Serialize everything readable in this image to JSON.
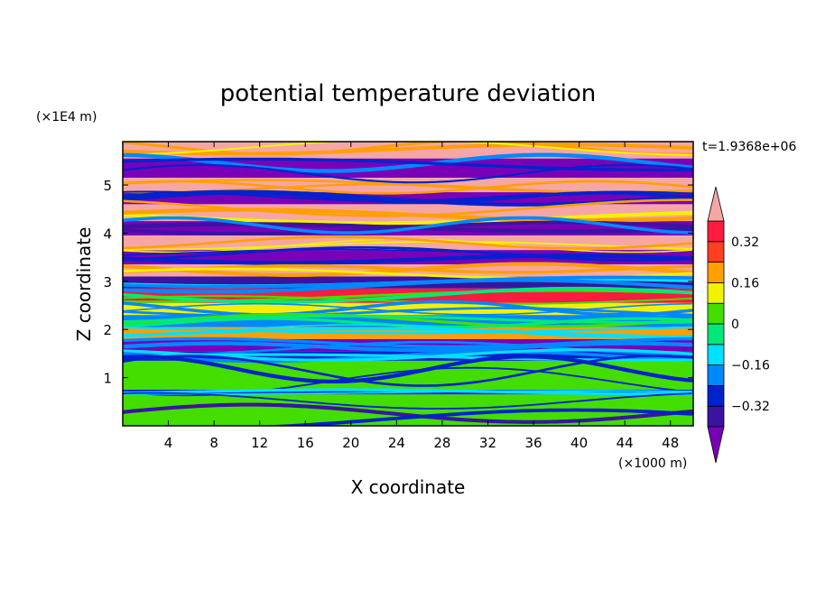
{
  "chart_data": {
    "type": "heatmap",
    "title": "potential temperature deviation",
    "xlabel": "X coordinate",
    "ylabel": "Z coordinate",
    "x_unit": "(×1000 m)",
    "y_unit": "(×1E4 m)",
    "time_label": "t=1.9368e+06",
    "xlim": [
      0,
      50
    ],
    "ylim": [
      0,
      5.9
    ],
    "x_ticks": [
      "4",
      "8",
      "12",
      "16",
      "20",
      "24",
      "28",
      "32",
      "36",
      "40",
      "44",
      "48"
    ],
    "x_tick_values": [
      4,
      8,
      12,
      16,
      20,
      24,
      28,
      32,
      36,
      40,
      44,
      48
    ],
    "y_ticks": [
      "1",
      "2",
      "3",
      "4",
      "5"
    ],
    "y_tick_values": [
      1,
      2,
      3,
      4,
      5
    ],
    "colorbar": {
      "labels": [
        "0.32",
        "0.16",
        "0",
        "−0.16",
        "−0.32"
      ],
      "label_values": [
        0.32,
        0.16,
        0,
        -0.16,
        -0.32
      ],
      "levels": [
        -0.4,
        -0.32,
        -0.24,
        -0.16,
        -0.08,
        0,
        0.08,
        0.16,
        0.24,
        0.32,
        0.4
      ],
      "colors": [
        "#7a00b8",
        "#3a14a0",
        "#0022cc",
        "#0088ff",
        "#00e0ff",
        "#00e87a",
        "#44dd00",
        "#f2f200",
        "#ff9f00",
        "#ff4020",
        "#ff1a40",
        "#f7a6a6"
      ],
      "under_color": "#7a00b8",
      "over_color": "#f7a6a6"
    },
    "bands": [
      {
        "z": [
          5.55,
          5.9
        ],
        "value": 0.5
      },
      {
        "z": [
          5.15,
          5.55
        ],
        "value": -0.5
      },
      {
        "z": [
          4.85,
          5.15
        ],
        "value": 0.5
      },
      {
        "z": [
          4.6,
          4.85
        ],
        "value": -0.5
      },
      {
        "z": [
          4.25,
          4.6
        ],
        "value": 0.5
      },
      {
        "z": [
          3.95,
          4.25
        ],
        "value": -0.45
      },
      {
        "z": [
          3.65,
          3.95
        ],
        "value": 0.45
      },
      {
        "z": [
          3.35,
          3.65
        ],
        "value": -0.45
      },
      {
        "z": [
          3.1,
          3.35
        ],
        "value": 0.45
      },
      {
        "z": [
          2.85,
          3.1
        ],
        "value": -0.4
      },
      {
        "z": [
          2.55,
          2.85
        ],
        "value": 0.35
      },
      {
        "z": [
          2.3,
          2.55
        ],
        "value": 0.1
      },
      {
        "z": [
          2.05,
          2.3
        ],
        "value": -0.2
      },
      {
        "z": [
          1.8,
          2.05
        ],
        "value": 0.2
      },
      {
        "z": [
          1.55,
          1.8
        ],
        "value": -0.45
      },
      {
        "z": [
          1.35,
          1.55
        ],
        "value": -0.3
      },
      {
        "z": [
          0.75,
          1.35
        ],
        "value": 0.02
      },
      {
        "z": [
          0.65,
          0.75
        ],
        "value": -0.3
      },
      {
        "z": [
          0.0,
          0.65
        ],
        "value": 0.05
      }
    ]
  }
}
